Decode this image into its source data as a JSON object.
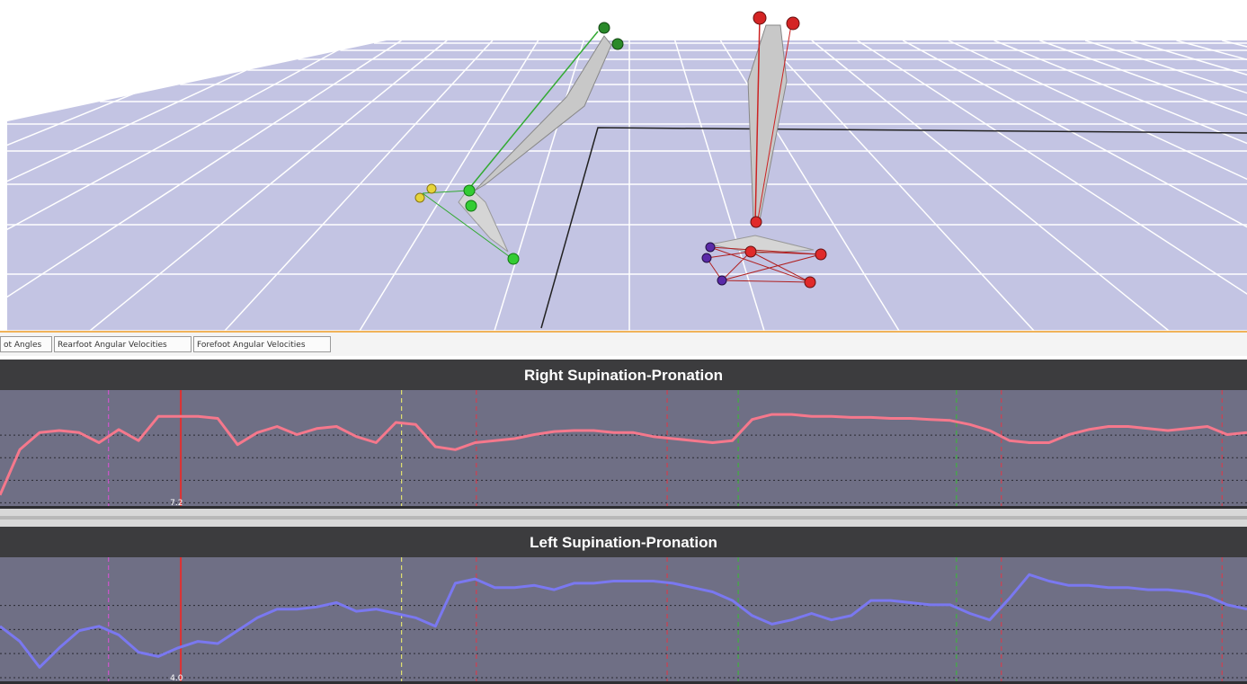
{
  "tabs": [
    {
      "label": "ot Angles"
    },
    {
      "label": "Rearfoot Angular Velocities"
    },
    {
      "label": "Forefoot Angular Velocities"
    }
  ],
  "colors": {
    "floor": "#c3c4e3",
    "grid": "#ffffff",
    "graph_bg": "#6f6f85",
    "title_bar": "#3c3c3e",
    "right_curve": "#f5788c",
    "left_curve": "#7a78f0",
    "accent_border": "#f0b35a"
  },
  "graphs": {
    "right": {
      "title": "Right Supination-Pronation",
      "cursor_label": "7.2"
    },
    "left": {
      "title": "Left Supination-Pronation",
      "cursor_label": "4.0"
    }
  },
  "chart_data": [
    {
      "type": "line",
      "title": "Right Supination-Pronation",
      "series": [
        {
          "values": [
            0.1,
            0.55,
            0.72,
            0.74,
            0.72,
            0.62,
            0.75,
            0.64,
            0.88,
            0.88,
            0.88,
            0.86,
            0.6,
            0.72,
            0.78,
            0.7,
            0.76,
            0.78,
            0.68,
            0.62,
            0.82,
            0.8,
            0.58,
            0.55,
            0.62,
            0.64,
            0.66,
            0.7,
            0.73,
            0.74,
            0.74,
            0.72,
            0.72,
            0.68,
            0.66,
            0.64,
            0.62,
            0.64,
            0.85,
            0.9,
            0.9,
            0.88,
            0.88,
            0.87,
            0.87,
            0.86,
            0.86,
            0.85,
            0.84,
            0.8,
            0.74,
            0.64,
            0.62,
            0.62,
            0.7,
            0.75,
            0.78,
            0.78,
            0.76,
            0.74,
            0.76,
            0.78,
            0.7,
            0.72
          ]
        }
      ],
      "markers": [
        {
          "color": "#cc55cc",
          "style": "dashed"
        },
        {
          "color": "#e03030",
          "style": "solid"
        },
        {
          "color": "#e0e070",
          "style": "dashed"
        },
        {
          "color": "#d04050",
          "style": "dashed"
        },
        {
          "color": "#d04050",
          "style": "dashed"
        },
        {
          "color": "#40b040",
          "style": "dashed"
        },
        {
          "color": "#40b040",
          "style": "dashed"
        },
        {
          "color": "#d04050",
          "style": "dashed"
        },
        {
          "color": "#d04050",
          "style": "dashed"
        }
      ],
      "grid": true
    },
    {
      "type": "line",
      "title": "Left Supination-Pronation",
      "series": [
        {
          "values": [
            0.5,
            0.36,
            0.12,
            0.3,
            0.46,
            0.5,
            0.42,
            0.26,
            0.22,
            0.3,
            0.36,
            0.34,
            0.46,
            0.58,
            0.66,
            0.66,
            0.68,
            0.72,
            0.64,
            0.66,
            0.62,
            0.58,
            0.5,
            0.9,
            0.94,
            0.86,
            0.86,
            0.88,
            0.84,
            0.9,
            0.9,
            0.92,
            0.92,
            0.92,
            0.9,
            0.86,
            0.82,
            0.74,
            0.6,
            0.52,
            0.56,
            0.62,
            0.56,
            0.6,
            0.74,
            0.74,
            0.72,
            0.7,
            0.7,
            0.62,
            0.56,
            0.76,
            0.98,
            0.92,
            0.88,
            0.88,
            0.86,
            0.86,
            0.84,
            0.84,
            0.82,
            0.78,
            0.7,
            0.66
          ]
        }
      ],
      "markers": [
        {
          "color": "#cc55cc",
          "style": "dashed"
        },
        {
          "color": "#e03030",
          "style": "solid"
        },
        {
          "color": "#e0e070",
          "style": "dashed"
        },
        {
          "color": "#d04050",
          "style": "dashed"
        },
        {
          "color": "#d04050",
          "style": "dashed"
        },
        {
          "color": "#40b040",
          "style": "dashed"
        },
        {
          "color": "#40b040",
          "style": "dashed"
        },
        {
          "color": "#d04050",
          "style": "dashed"
        },
        {
          "color": "#d04050",
          "style": "dashed"
        }
      ],
      "grid": true
    }
  ]
}
